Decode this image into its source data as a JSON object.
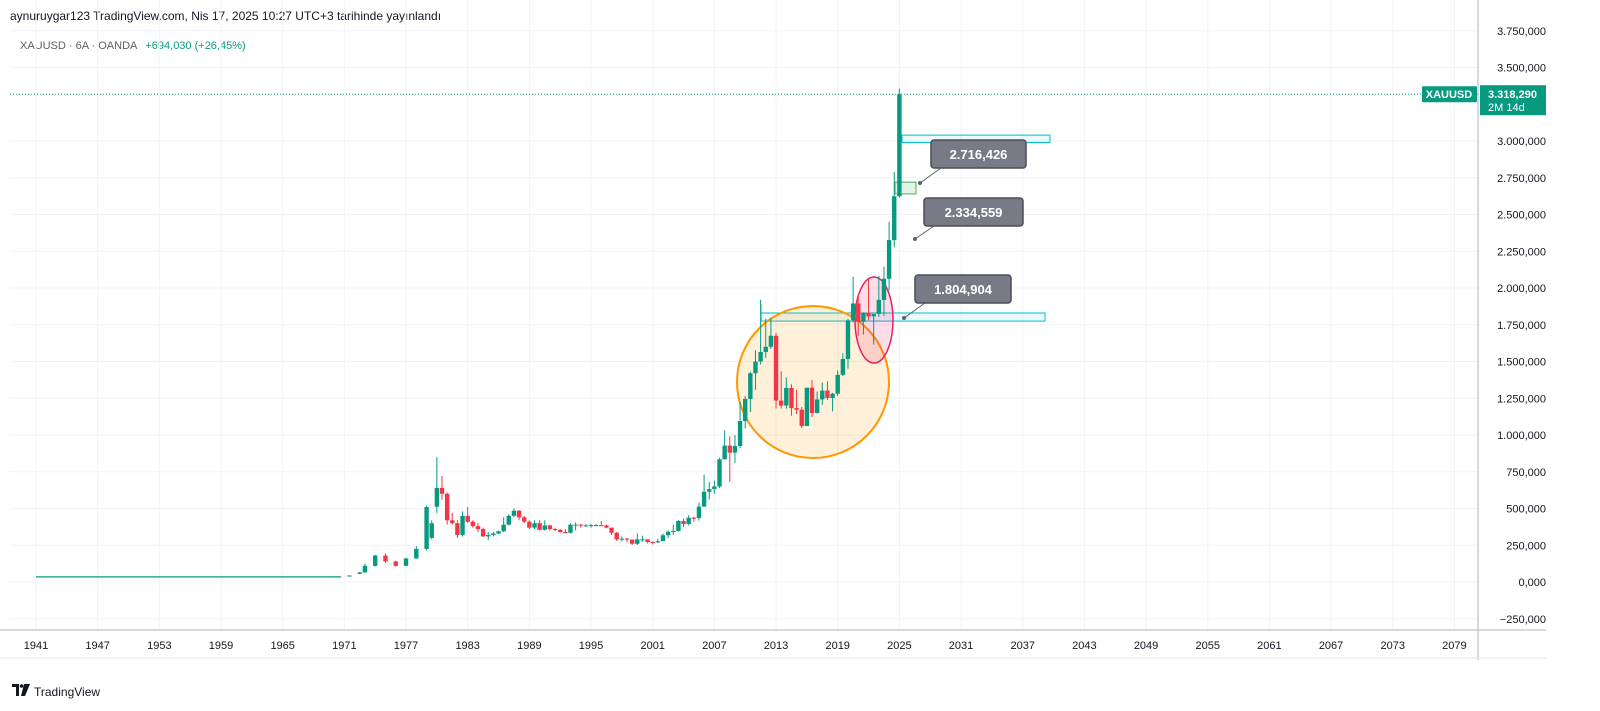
{
  "header": {
    "publisher_line": "aynuruygar123 TradingView.com, Nis 17, 2025 10:27 UTC+3 tarihinde yayınlandı"
  },
  "legend": {
    "symbol_info": "XAUUSD · 6A · OANDA",
    "change": "+694,030 (+26,45%)"
  },
  "price_tag": {
    "symbol": "XAUUSD",
    "price": "3.318,290",
    "countdown": "2M 14d"
  },
  "callouts": [
    {
      "label": "2.716,426"
    },
    {
      "label": "2.334,559"
    },
    {
      "label": "1.804,904"
    }
  ],
  "colors": {
    "up": "#089981",
    "down": "#f23645",
    "grid": "#f0f3fa",
    "zone": "#00bcd4",
    "orange_circle": "#ff9800",
    "pink_circle": "#e91e63",
    "callout_bg": "#787b86"
  },
  "footer": {
    "brand": "TradingView",
    "logo_icon": "tradingview-logo-icon"
  },
  "chart_data": {
    "type": "candlestick",
    "title": "",
    "x_axis": {
      "labels": [
        "1941",
        "1947",
        "1953",
        "1959",
        "1965",
        "1971",
        "1977",
        "1983",
        "1989",
        "1995",
        "2001",
        "2007",
        "2013",
        "2019",
        "2025",
        "2031",
        "2037",
        "2043",
        "2049",
        "2055",
        "2061",
        "2067",
        "2073",
        "2079"
      ]
    },
    "y_axis": {
      "labels": [
        "3.750,000",
        "3.500,000",
        "3.000,000",
        "2.750,000",
        "2.500,000",
        "2.250,000",
        "2.000,000",
        "1.750,000",
        "1.500,000",
        "1.250,000",
        "1.000,000",
        "750,000",
        "500,000",
        "250,000",
        "0,000",
        "−250,000"
      ],
      "values": [
        3750,
        3500,
        3000,
        2750,
        2500,
        2250,
        2000,
        1750,
        1500,
        1250,
        1000,
        750,
        500,
        250,
        0,
        -250
      ],
      "ylim": [
        -260,
        3780
      ]
    },
    "series": [
      {
        "name": "XAUUSD",
        "semiannual_ohlc": [
          {
            "t": 1941.0,
            "o": 35,
            "h": 36,
            "l": 34,
            "c": 35
          },
          {
            "t": 1970.5,
            "o": 36,
            "h": 42,
            "l": 35,
            "c": 38
          },
          {
            "t": 1971.5,
            "o": 40,
            "h": 46,
            "l": 39,
            "c": 44
          },
          {
            "t": 1972.5,
            "o": 55,
            "h": 68,
            "l": 54,
            "c": 65
          },
          {
            "t": 1973.0,
            "o": 65,
            "h": 125,
            "l": 64,
            "c": 110
          },
          {
            "t": 1974.0,
            "o": 110,
            "h": 185,
            "l": 105,
            "c": 180
          },
          {
            "t": 1975.0,
            "o": 180,
            "h": 195,
            "l": 130,
            "c": 140
          },
          {
            "t": 1976.0,
            "o": 140,
            "h": 145,
            "l": 103,
            "c": 110
          },
          {
            "t": 1977.0,
            "o": 110,
            "h": 165,
            "l": 108,
            "c": 160
          },
          {
            "t": 1978.0,
            "o": 160,
            "h": 245,
            "l": 158,
            "c": 225
          },
          {
            "t": 1979.0,
            "o": 225,
            "h": 520,
            "l": 215,
            "c": 510
          },
          {
            "t": 1979.5,
            "o": 300,
            "h": 420,
            "l": 290,
            "c": 400
          },
          {
            "t": 1980.0,
            "o": 512,
            "h": 850,
            "l": 470,
            "c": 640
          },
          {
            "t": 1980.5,
            "o": 640,
            "h": 720,
            "l": 560,
            "c": 600
          },
          {
            "t": 1981.0,
            "o": 600,
            "h": 610,
            "l": 390,
            "c": 420
          },
          {
            "t": 1981.5,
            "o": 420,
            "h": 470,
            "l": 390,
            "c": 400
          },
          {
            "t": 1982.0,
            "o": 400,
            "h": 420,
            "l": 300,
            "c": 320
          },
          {
            "t": 1982.5,
            "o": 320,
            "h": 480,
            "l": 310,
            "c": 450
          },
          {
            "t": 1983.0,
            "o": 450,
            "h": 510,
            "l": 400,
            "c": 410
          },
          {
            "t": 1983.5,
            "o": 410,
            "h": 420,
            "l": 370,
            "c": 380
          },
          {
            "t": 1984.0,
            "o": 380,
            "h": 400,
            "l": 340,
            "c": 360
          },
          {
            "t": 1984.5,
            "o": 360,
            "h": 370,
            "l": 307,
            "c": 310
          },
          {
            "t": 1985.0,
            "o": 310,
            "h": 340,
            "l": 285,
            "c": 320
          },
          {
            "t": 1985.5,
            "o": 320,
            "h": 340,
            "l": 310,
            "c": 330
          },
          {
            "t": 1986.0,
            "o": 330,
            "h": 350,
            "l": 325,
            "c": 345
          },
          {
            "t": 1986.5,
            "o": 345,
            "h": 440,
            "l": 340,
            "c": 390
          },
          {
            "t": 1987.0,
            "o": 390,
            "h": 460,
            "l": 385,
            "c": 450
          },
          {
            "t": 1987.5,
            "o": 450,
            "h": 500,
            "l": 440,
            "c": 485
          },
          {
            "t": 1988.0,
            "o": 485,
            "h": 490,
            "l": 420,
            "c": 440
          },
          {
            "t": 1988.5,
            "o": 440,
            "h": 450,
            "l": 400,
            "c": 410
          },
          {
            "t": 1989.0,
            "o": 410,
            "h": 420,
            "l": 360,
            "c": 370
          },
          {
            "t": 1989.5,
            "o": 370,
            "h": 420,
            "l": 360,
            "c": 400
          },
          {
            "t": 1990.0,
            "o": 400,
            "h": 420,
            "l": 350,
            "c": 355
          },
          {
            "t": 1990.5,
            "o": 355,
            "h": 420,
            "l": 350,
            "c": 385
          },
          {
            "t": 1991.0,
            "o": 385,
            "h": 390,
            "l": 350,
            "c": 360
          },
          {
            "t": 1991.5,
            "o": 360,
            "h": 370,
            "l": 345,
            "c": 355
          },
          {
            "t": 1992.0,
            "o": 355,
            "h": 360,
            "l": 335,
            "c": 340
          },
          {
            "t": 1992.5,
            "o": 340,
            "h": 360,
            "l": 330,
            "c": 335
          },
          {
            "t": 1993.0,
            "o": 335,
            "h": 400,
            "l": 330,
            "c": 390
          },
          {
            "t": 1993.5,
            "o": 390,
            "h": 405,
            "l": 350,
            "c": 390
          },
          {
            "t": 1994.0,
            "o": 390,
            "h": 395,
            "l": 370,
            "c": 385
          },
          {
            "t": 1994.5,
            "o": 385,
            "h": 395,
            "l": 375,
            "c": 385
          },
          {
            "t": 1995.0,
            "o": 385,
            "h": 395,
            "l": 370,
            "c": 387
          },
          {
            "t": 1995.5,
            "o": 387,
            "h": 395,
            "l": 380,
            "c": 387
          },
          {
            "t": 1996.0,
            "o": 387,
            "h": 415,
            "l": 380,
            "c": 385
          },
          {
            "t": 1996.5,
            "o": 385,
            "h": 390,
            "l": 365,
            "c": 370
          },
          {
            "t": 1997.0,
            "o": 370,
            "h": 370,
            "l": 320,
            "c": 335
          },
          {
            "t": 1997.5,
            "o": 335,
            "h": 340,
            "l": 280,
            "c": 290
          },
          {
            "t": 1998.0,
            "o": 290,
            "h": 310,
            "l": 275,
            "c": 295
          },
          {
            "t": 1998.5,
            "o": 295,
            "h": 300,
            "l": 270,
            "c": 288
          },
          {
            "t": 1999.0,
            "o": 288,
            "h": 290,
            "l": 252,
            "c": 260
          },
          {
            "t": 1999.5,
            "o": 260,
            "h": 330,
            "l": 252,
            "c": 290
          },
          {
            "t": 2000.0,
            "o": 290,
            "h": 315,
            "l": 275,
            "c": 290
          },
          {
            "t": 2000.5,
            "o": 290,
            "h": 290,
            "l": 263,
            "c": 272
          },
          {
            "t": 2001.0,
            "o": 272,
            "h": 275,
            "l": 255,
            "c": 270
          },
          {
            "t": 2001.5,
            "o": 270,
            "h": 295,
            "l": 265,
            "c": 278
          },
          {
            "t": 2002.0,
            "o": 278,
            "h": 330,
            "l": 277,
            "c": 318
          },
          {
            "t": 2002.5,
            "o": 318,
            "h": 350,
            "l": 300,
            "c": 342
          },
          {
            "t": 2003.0,
            "o": 342,
            "h": 390,
            "l": 320,
            "c": 347
          },
          {
            "t": 2003.5,
            "o": 347,
            "h": 420,
            "l": 343,
            "c": 415
          },
          {
            "t": 2004.0,
            "o": 415,
            "h": 430,
            "l": 372,
            "c": 395
          },
          {
            "t": 2004.5,
            "o": 395,
            "h": 455,
            "l": 385,
            "c": 437
          },
          {
            "t": 2005.0,
            "o": 437,
            "h": 445,
            "l": 410,
            "c": 435
          },
          {
            "t": 2005.5,
            "o": 435,
            "h": 540,
            "l": 418,
            "c": 513
          },
          {
            "t": 2006.0,
            "o": 513,
            "h": 730,
            "l": 510,
            "c": 614
          },
          {
            "t": 2006.5,
            "o": 614,
            "h": 680,
            "l": 560,
            "c": 632
          },
          {
            "t": 2007.0,
            "o": 632,
            "h": 690,
            "l": 600,
            "c": 650
          },
          {
            "t": 2007.5,
            "o": 650,
            "h": 845,
            "l": 640,
            "c": 834
          },
          {
            "t": 2008.0,
            "o": 834,
            "h": 1032,
            "l": 850,
            "c": 928
          },
          {
            "t": 2008.5,
            "o": 928,
            "h": 990,
            "l": 681,
            "c": 880
          },
          {
            "t": 2009.0,
            "o": 880,
            "h": 1000,
            "l": 810,
            "c": 925
          },
          {
            "t": 2009.5,
            "o": 925,
            "h": 1225,
            "l": 910,
            "c": 1095
          },
          {
            "t": 2010.0,
            "o": 1095,
            "h": 1265,
            "l": 1045,
            "c": 1245
          },
          {
            "t": 2010.5,
            "o": 1245,
            "h": 1430,
            "l": 1157,
            "c": 1420
          },
          {
            "t": 2011.0,
            "o": 1420,
            "h": 1577,
            "l": 1308,
            "c": 1500
          },
          {
            "t": 2011.5,
            "o": 1500,
            "h": 1920,
            "l": 1480,
            "c": 1565
          },
          {
            "t": 2012.0,
            "o": 1565,
            "h": 1790,
            "l": 1525,
            "c": 1600
          },
          {
            "t": 2012.5,
            "o": 1600,
            "h": 1796,
            "l": 1585,
            "c": 1675
          },
          {
            "t": 2013.0,
            "o": 1675,
            "h": 1695,
            "l": 1180,
            "c": 1234
          },
          {
            "t": 2013.5,
            "o": 1234,
            "h": 1434,
            "l": 1180,
            "c": 1200
          },
          {
            "t": 2014.0,
            "o": 1200,
            "h": 1392,
            "l": 1180,
            "c": 1320
          },
          {
            "t": 2014.5,
            "o": 1320,
            "h": 1345,
            "l": 1131,
            "c": 1183
          },
          {
            "t": 2015.0,
            "o": 1183,
            "h": 1307,
            "l": 1142,
            "c": 1172
          },
          {
            "t": 2015.5,
            "o": 1172,
            "h": 1191,
            "l": 1046,
            "c": 1061
          },
          {
            "t": 2016.0,
            "o": 1061,
            "h": 1303,
            "l": 1061,
            "c": 1322
          },
          {
            "t": 2016.5,
            "o": 1322,
            "h": 1375,
            "l": 1122,
            "c": 1150
          },
          {
            "t": 2017.0,
            "o": 1150,
            "h": 1296,
            "l": 1146,
            "c": 1242
          },
          {
            "t": 2017.5,
            "o": 1242,
            "h": 1357,
            "l": 1205,
            "c": 1302
          },
          {
            "t": 2018.0,
            "o": 1302,
            "h": 1365,
            "l": 1238,
            "c": 1252
          },
          {
            "t": 2018.5,
            "o": 1252,
            "h": 1287,
            "l": 1160,
            "c": 1281
          },
          {
            "t": 2019.0,
            "o": 1281,
            "h": 1439,
            "l": 1266,
            "c": 1409
          },
          {
            "t": 2019.5,
            "o": 1409,
            "h": 1557,
            "l": 1400,
            "c": 1517
          },
          {
            "t": 2020.0,
            "o": 1517,
            "h": 1789,
            "l": 1451,
            "c": 1780
          },
          {
            "t": 2020.5,
            "o": 1780,
            "h": 2075,
            "l": 1765,
            "c": 1895
          },
          {
            "t": 2021.0,
            "o": 1895,
            "h": 1960,
            "l": 1676,
            "c": 1770
          },
          {
            "t": 2021.5,
            "o": 1770,
            "h": 1835,
            "l": 1683,
            "c": 1829
          },
          {
            "t": 2022.0,
            "o": 1829,
            "h": 2070,
            "l": 1780,
            "c": 1807
          },
          {
            "t": 2022.5,
            "o": 1807,
            "h": 1815,
            "l": 1615,
            "c": 1824
          },
          {
            "t": 2023.0,
            "o": 1824,
            "h": 2081,
            "l": 1804,
            "c": 1919
          },
          {
            "t": 2023.5,
            "o": 1919,
            "h": 2146,
            "l": 1810,
            "c": 2063
          },
          {
            "t": 2024.0,
            "o": 2063,
            "h": 2450,
            "l": 1984,
            "c": 2326
          },
          {
            "t": 2024.5,
            "o": 2326,
            "h": 2790,
            "l": 2277,
            "c": 2624
          },
          {
            "t": 2025.0,
            "o": 2624,
            "h": 3357,
            "l": 2614,
            "c": 3318
          }
        ]
      }
    ],
    "annotations": [
      {
        "type": "callout",
        "value": 2716.426
      },
      {
        "type": "callout",
        "value": 2334.559
      },
      {
        "type": "callout",
        "value": 1804.904
      },
      {
        "type": "circle",
        "color": "orange",
        "center_year": 2016.5,
        "center_value": 1380
      },
      {
        "type": "ellipse",
        "color": "pink",
        "center_year": 2022.5,
        "center_value": 1790
      },
      {
        "type": "zone",
        "from_value": 1775,
        "to_value": 1830
      },
      {
        "type": "zone",
        "from_value": 2990,
        "to_value": 3040
      },
      {
        "type": "zone",
        "from_value": 2640,
        "to_value": 2720
      }
    ],
    "last_price": 3318.29,
    "grid": true
  }
}
